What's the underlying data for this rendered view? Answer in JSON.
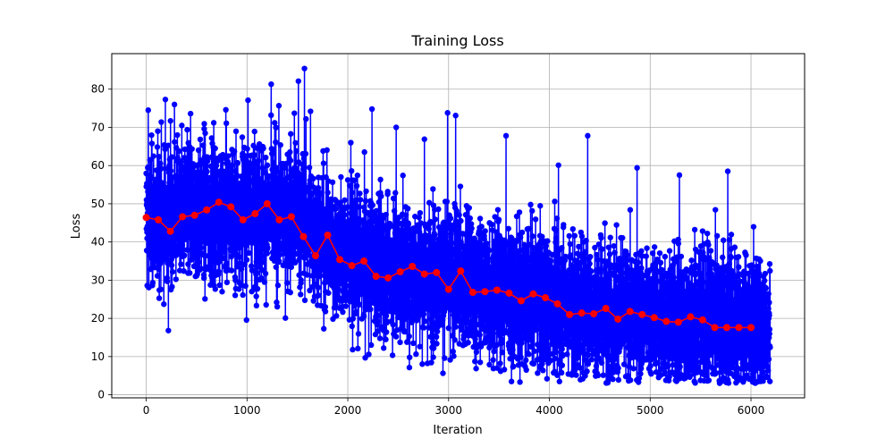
{
  "chart_data": {
    "type": "line",
    "title": "Training Loss",
    "xlabel": "Iteration",
    "ylabel": "Loss",
    "xlim": [
      -342,
      6532
    ],
    "ylim": [
      -0.8,
      89.3
    ],
    "xticks": [
      0,
      1000,
      2000,
      3000,
      4000,
      5000,
      6000
    ],
    "yticks": [
      0,
      10,
      20,
      30,
      40,
      50,
      60,
      70,
      80
    ],
    "grid": true,
    "colors": {
      "raw": "#0000ff",
      "smoothed": "#ff0000",
      "grid": "#b0b0b0",
      "axes": "#000000"
    },
    "raw_series": {
      "x_start": 0,
      "x_end": 6190,
      "n_points": 6191,
      "trend_x": [
        0,
        500,
        1000,
        1500,
        1700,
        2000,
        2500,
        3000,
        3300,
        4000,
        4500,
        5000,
        5500,
        6190
      ],
      "trend_mean": [
        46,
        48,
        48,
        47,
        42,
        36,
        32,
        31,
        28,
        25,
        22,
        21,
        20,
        18
      ],
      "spread_std": 9,
      "floor": 3,
      "peaks": [
        [
          20,
          74.5
        ],
        [
          190,
          77.3
        ],
        [
          280,
          76.0
        ],
        [
          440,
          73.6
        ],
        [
          670,
          71.2
        ],
        [
          790,
          74.6
        ],
        [
          1010,
          77.1
        ],
        [
          1240,
          81.3
        ],
        [
          1470,
          73.7
        ],
        [
          1510,
          82.1
        ],
        [
          1570,
          85.4
        ],
        [
          1630,
          74.2
        ],
        [
          2030,
          66.0
        ],
        [
          2240,
          74.8
        ],
        [
          2480,
          70.0
        ],
        [
          2760,
          66.9
        ],
        [
          2990,
          73.8
        ],
        [
          3070,
          73.1
        ],
        [
          3570,
          67.8
        ],
        [
          4090,
          60.1
        ],
        [
          4380,
          67.8
        ],
        [
          4870,
          59.4
        ],
        [
          5290,
          57.5
        ],
        [
          5770,
          58.5
        ]
      ],
      "valleys": [
        [
          220,
          16.8
        ],
        [
          2100,
          12.1
        ],
        [
          2960,
          9.6
        ],
        [
          3480,
          7.0
        ],
        [
          3990,
          8.3
        ],
        [
          4650,
          6.2
        ],
        [
          4780,
          5.0
        ],
        [
          5090,
          5.2
        ],
        [
          5870,
          3.7
        ],
        [
          6160,
          4.6
        ]
      ]
    },
    "smoothed_series": {
      "x": [
        0,
        120,
        240,
        360,
        480,
        600,
        720,
        840,
        960,
        1080,
        1200,
        1320,
        1440,
        1560,
        1680,
        1800,
        1920,
        2040,
        2160,
        2280,
        2400,
        2520,
        2640,
        2760,
        2880,
        3000,
        3120,
        3240,
        3360,
        3480,
        3600,
        3720,
        3840,
        3960,
        4080,
        4200,
        4320,
        4440,
        4560,
        4680,
        4800,
        4920,
        5040,
        5160,
        5280,
        5400,
        5520,
        5640,
        5760,
        5880,
        6000
      ],
      "y": [
        46.4,
        45.8,
        42.8,
        46.6,
        47.0,
        48.4,
        50.4,
        49.2,
        45.8,
        47.4,
        50.0,
        45.8,
        46.6,
        41.4,
        36.4,
        41.8,
        35.4,
        33.8,
        35.0,
        31.0,
        30.6,
        32.2,
        33.6,
        31.6,
        32.0,
        27.6,
        32.4,
        26.8,
        27.0,
        27.4,
        26.6,
        24.6,
        26.4,
        25.4,
        23.8,
        21.0,
        21.4,
        21.2,
        22.6,
        19.8,
        21.8,
        21.0,
        20.2,
        19.2,
        19.0,
        20.4,
        19.6,
        17.6,
        17.6,
        17.6,
        17.6
      ]
    }
  }
}
